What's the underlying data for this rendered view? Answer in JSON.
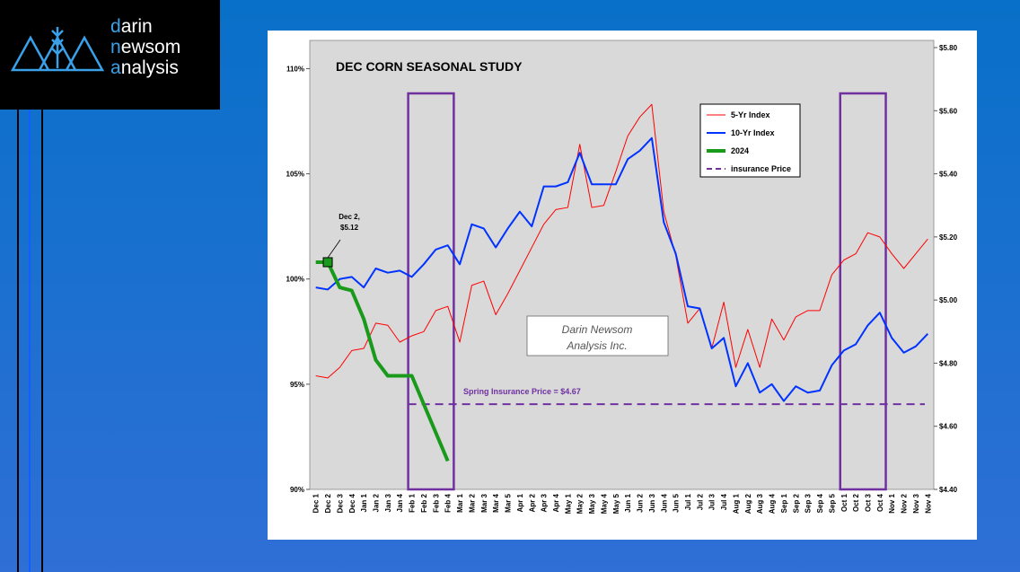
{
  "logo": [
    "darin",
    "newsom",
    "analysis"
  ],
  "chart_data": {
    "type": "line",
    "title": "DEC CORN SEASONAL STUDY",
    "categories": [
      "Dec 1",
      "Dec 2",
      "Dec 3",
      "Dec 4",
      "Jan 1",
      "Jan 2",
      "Jan 3",
      "Jan 4",
      "Feb 1",
      "Feb 2",
      "Feb 3",
      "Feb 4",
      "Mar 1",
      "Mar 2",
      "Mar 3",
      "Mar 4",
      "Mar 5",
      "Apr 1",
      "Apr 2",
      "Apr 3",
      "Apr 4",
      "May 1",
      "May 2",
      "May 3",
      "May 4",
      "May 5",
      "Jun 1",
      "Jun 2",
      "Jun 3",
      "Jun 4",
      "Jun 5",
      "Jul 1",
      "Jul 2",
      "Jul 3",
      "Jul 4",
      "Aug 1",
      "Aug 2",
      "Aug 3",
      "Aug 4",
      "Sep 1",
      "Sep 2",
      "Sep 3",
      "Sep 4",
      "Sep 5",
      "Oct 1",
      "Oct 2",
      "Oct 3",
      "Oct 4",
      "Nov 1",
      "Nov 2",
      "Nov 3",
      "Nov 4"
    ],
    "series": [
      {
        "name": "5-Yr Index",
        "color": "#ff0000",
        "width": 1,
        "values": [
          95.4,
          95.3,
          95.8,
          96.6,
          96.7,
          97.9,
          97.8,
          97.0,
          97.3,
          97.5,
          98.5,
          98.7,
          97.0,
          99.7,
          99.9,
          98.3,
          99.3,
          100.4,
          101.5,
          102.6,
          103.3,
          103.4,
          106.4,
          103.4,
          103.5,
          105.1,
          106.8,
          107.7,
          108.3,
          103.2,
          101.1,
          97.9,
          98.6,
          96.7,
          98.9,
          95.8,
          97.6,
          95.8,
          98.1,
          97.1,
          98.2,
          98.5,
          98.5,
          100.2,
          100.9,
          101.2,
          102.2,
          102.0,
          101.2,
          100.5,
          101.2,
          101.9
        ]
      },
      {
        "name": "10-Yr Index",
        "color": "#0033ff",
        "width": 2,
        "values": [
          99.6,
          99.5,
          100.0,
          100.1,
          99.6,
          100.5,
          100.3,
          100.4,
          100.1,
          100.7,
          101.4,
          101.6,
          100.7,
          102.6,
          102.4,
          101.5,
          102.4,
          103.2,
          102.5,
          104.4,
          104.4,
          104.6,
          106.0,
          104.5,
          104.5,
          104.5,
          105.7,
          106.1,
          106.7,
          102.7,
          101.2,
          98.7,
          98.6,
          96.7,
          97.2,
          94.9,
          96.0,
          94.6,
          95.0,
          94.2,
          94.9,
          94.6,
          94.7,
          95.9,
          96.6,
          96.9,
          97.8,
          98.4,
          97.2,
          96.5,
          96.8,
          97.4
        ]
      },
      {
        "name": "2024",
        "color": "#1a9a1a",
        "width": 4,
        "axis": "y2",
        "values": [
          5.12,
          5.12,
          5.04,
          5.03,
          4.94,
          4.81,
          4.76,
          4.76,
          4.76,
          4.67,
          4.58,
          4.49,
          null,
          null,
          null,
          null,
          null,
          null,
          null,
          null,
          null,
          null,
          null,
          null,
          null,
          null,
          null,
          null,
          null,
          null,
          null,
          null,
          null,
          null,
          null,
          null,
          null,
          null,
          null,
          null,
          null,
          null,
          null,
          null,
          null,
          null,
          null,
          null,
          null,
          null,
          null,
          null
        ]
      }
    ],
    "reference_line": {
      "name": "insurance Price",
      "value": 4.67,
      "axis": "y2",
      "color": "#7030a0",
      "start_category": "Feb 1",
      "label": "Spring Insurance Price = $4.67"
    },
    "annotation": {
      "category": "Dec 2",
      "series": 2,
      "lines": [
        "Dec 2,",
        "$5.12"
      ]
    },
    "highlight_ranges": [
      [
        "Feb 1",
        "Feb 4"
      ],
      [
        "Oct 1",
        "Oct 4"
      ]
    ],
    "highlight_color": "#7030a0",
    "watermark": [
      "Darin Newsom",
      "Analysis Inc."
    ],
    "ylim": [
      90,
      111
    ],
    "yticks": [
      {
        "value": 90,
        "label": "90%"
      },
      {
        "value": 95,
        "label": "95%"
      },
      {
        "value": 100,
        "label": "100%"
      },
      {
        "value": 105,
        "label": "105%"
      },
      {
        "value": 110,
        "label": "110%"
      }
    ],
    "y2lim": [
      4.4,
      5.8
    ],
    "y2ticks": [
      {
        "value": 4.4,
        "label": "$4.40"
      },
      {
        "value": 4.6,
        "label": "$4.60"
      },
      {
        "value": 4.8,
        "label": "$4.80"
      },
      {
        "value": 5.0,
        "label": "$5.00"
      },
      {
        "value": 5.2,
        "label": "$5.20"
      },
      {
        "value": 5.4,
        "label": "$5.40"
      },
      {
        "value": 5.6,
        "label": "$5.60"
      },
      {
        "value": 5.8,
        "label": "$5.80"
      }
    ],
    "legend": "upper right"
  }
}
